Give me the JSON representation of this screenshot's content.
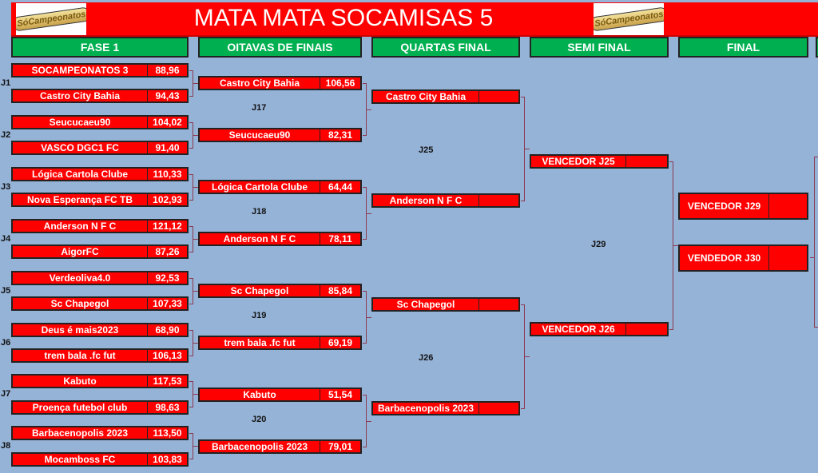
{
  "header": {
    "title": "MATA MATA SOCAMISAS 5",
    "logo_text": "SóCampeonatos"
  },
  "phases": [
    "FASE 1",
    "OITAVAS DE FINAIS",
    "QUARTAS FINAL",
    "SEMI FINAL",
    "FINAL"
  ],
  "fase1": {
    "games": [
      "J1",
      "J2",
      "J3",
      "J4",
      "J5",
      "J6",
      "J7",
      "J8"
    ],
    "teams": [
      {
        "name": "SOCAMPEONATOS 3",
        "score": "88,96"
      },
      {
        "name": "Castro City Bahia",
        "score": "94,43"
      },
      {
        "name": "Seucucaeu90",
        "score": "104,02"
      },
      {
        "name": "VASCO DGC1 FC",
        "score": "91,40"
      },
      {
        "name": "Lógica Cartola Clube",
        "score": "110,33"
      },
      {
        "name": "Nova Esperança FC TB",
        "score": "102,93"
      },
      {
        "name": "Anderson N F C",
        "score": "121,12"
      },
      {
        "name": "AigorFC",
        "score": "87,26"
      },
      {
        "name": "Verdeoliva4.0",
        "score": "92,53"
      },
      {
        "name": "Sc Chapegol",
        "score": "107,33"
      },
      {
        "name": "Deus é mais2023",
        "score": "68,90"
      },
      {
        "name": "trem bala .fc fut",
        "score": "106,13"
      },
      {
        "name": "Kabuto",
        "score": "117,53"
      },
      {
        "name": "Proença futebol club",
        "score": "98,63"
      },
      {
        "name": "Barbacenopolis 2023",
        "score": "113,50"
      },
      {
        "name": "Mocamboss FC",
        "score": "103,83"
      }
    ]
  },
  "oitavas": {
    "games": [
      "J17",
      "J18",
      "J19",
      "J20"
    ],
    "teams": [
      {
        "name": "Castro City Bahia",
        "score": "106,56"
      },
      {
        "name": "Seucucaeu90",
        "score": "82,31"
      },
      {
        "name": "Lógica Cartola Clube",
        "score": "64,44"
      },
      {
        "name": "Anderson N F C",
        "score": "78,11"
      },
      {
        "name": "Sc Chapegol",
        "score": "85,84"
      },
      {
        "name": "trem bala .fc fut",
        "score": "69,19"
      },
      {
        "name": "Kabuto",
        "score": "51,54"
      },
      {
        "name": "Barbacenopolis 2023",
        "score": "79,01"
      }
    ]
  },
  "quartas": {
    "games": [
      "J25",
      "J26"
    ],
    "teams": [
      {
        "name": "Castro City Bahia",
        "score": ""
      },
      {
        "name": "Anderson N F C",
        "score": ""
      },
      {
        "name": "Sc Chapegol",
        "score": ""
      },
      {
        "name": "Barbacenopolis 2023",
        "score": ""
      }
    ]
  },
  "semi": {
    "games": [
      "J29"
    ],
    "teams": [
      {
        "name": "VENCEDOR J25",
        "score": ""
      },
      {
        "name": "VENCEDOR J26",
        "score": ""
      }
    ]
  },
  "final": {
    "teams": [
      {
        "name": "VENCEDOR J29",
        "score": ""
      },
      {
        "name": "VENDEDOR J30",
        "score": ""
      }
    ]
  }
}
